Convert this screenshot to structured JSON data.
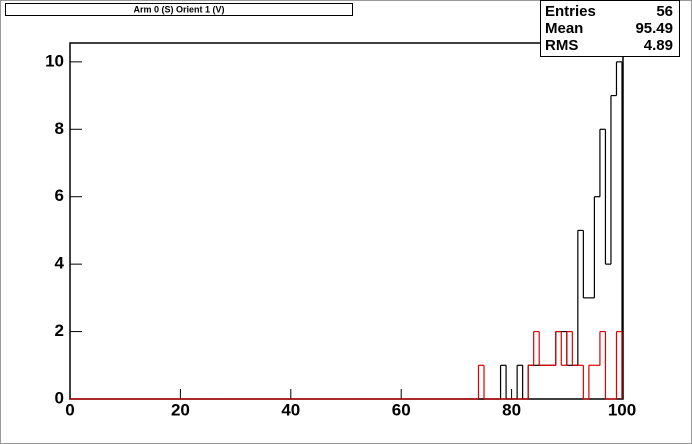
{
  "chart_data": {
    "type": "histogram",
    "title": "Arm 0 (S) Orient 1 (V)",
    "bins": [
      0,
      1,
      2,
      3,
      4,
      5,
      6,
      7,
      8,
      9,
      10,
      11,
      12,
      13,
      14,
      15,
      16,
      17,
      18,
      19,
      20,
      21,
      22,
      23,
      24,
      25,
      26,
      27,
      28,
      29,
      30,
      31,
      32,
      33,
      34,
      35,
      36,
      37,
      38,
      39,
      40,
      41,
      42,
      43,
      44,
      45,
      46,
      47,
      48,
      49,
      50,
      51,
      52,
      53,
      54,
      55,
      56,
      57,
      58,
      59,
      60,
      61,
      62,
      63,
      64,
      65,
      66,
      67,
      68,
      69,
      70,
      71,
      72,
      73,
      74,
      75,
      76,
      77,
      78,
      79,
      80,
      81,
      82,
      83,
      84,
      85,
      86,
      87,
      88,
      89,
      90,
      91,
      92,
      93,
      94,
      95,
      96,
      97,
      98,
      99,
      100
    ],
    "series": [
      {
        "color": "#000000",
        "values": [
          0,
          0,
          0,
          0,
          0,
          0,
          0,
          0,
          0,
          0,
          0,
          0,
          0,
          0,
          0,
          0,
          0,
          0,
          0,
          0,
          0,
          0,
          0,
          0,
          0,
          0,
          0,
          0,
          0,
          0,
          0,
          0,
          0,
          0,
          0,
          0,
          0,
          0,
          0,
          0,
          0,
          0,
          0,
          0,
          0,
          0,
          0,
          0,
          0,
          0,
          0,
          0,
          0,
          0,
          0,
          0,
          0,
          0,
          0,
          0,
          0,
          0,
          0,
          0,
          0,
          0,
          0,
          0,
          0,
          0,
          0,
          0,
          0,
          0,
          0,
          0,
          0,
          0,
          1,
          0,
          0,
          1,
          0,
          1,
          1,
          1,
          1,
          1,
          2,
          2,
          1,
          1,
          5,
          3,
          3,
          6,
          8,
          4,
          9,
          10
        ]
      },
      {
        "color": "#dd0000",
        "values": [
          0,
          0,
          0,
          0,
          0,
          0,
          0,
          0,
          0,
          0,
          0,
          0,
          0,
          0,
          0,
          0,
          0,
          0,
          0,
          0,
          0,
          0,
          0,
          0,
          0,
          0,
          0,
          0,
          0,
          0,
          0,
          0,
          0,
          0,
          0,
          0,
          0,
          0,
          0,
          0,
          0,
          0,
          0,
          0,
          0,
          0,
          0,
          0,
          0,
          0,
          0,
          0,
          0,
          0,
          0,
          0,
          0,
          0,
          0,
          0,
          0,
          0,
          0,
          0,
          0,
          0,
          0,
          0,
          0,
          0,
          0,
          0,
          0,
          0,
          1,
          0,
          0,
          0,
          0,
          0,
          0,
          0,
          0,
          1,
          2,
          1,
          1,
          1,
          2,
          1,
          2,
          1,
          1,
          0,
          1,
          1,
          2,
          0,
          0,
          2
        ]
      }
    ],
    "xlim": [
      0,
      100
    ],
    "xticks": [
      0,
      20,
      40,
      60,
      80,
      100
    ],
    "ylim": [
      0,
      10.5
    ],
    "yticks": [
      0,
      2,
      4,
      6,
      8,
      10
    ],
    "stats": {
      "entries_label": "Entries",
      "entries": 56,
      "mean_label": "Mean",
      "mean": 95.49,
      "rms_label": "RMS",
      "rms": 4.89
    }
  }
}
